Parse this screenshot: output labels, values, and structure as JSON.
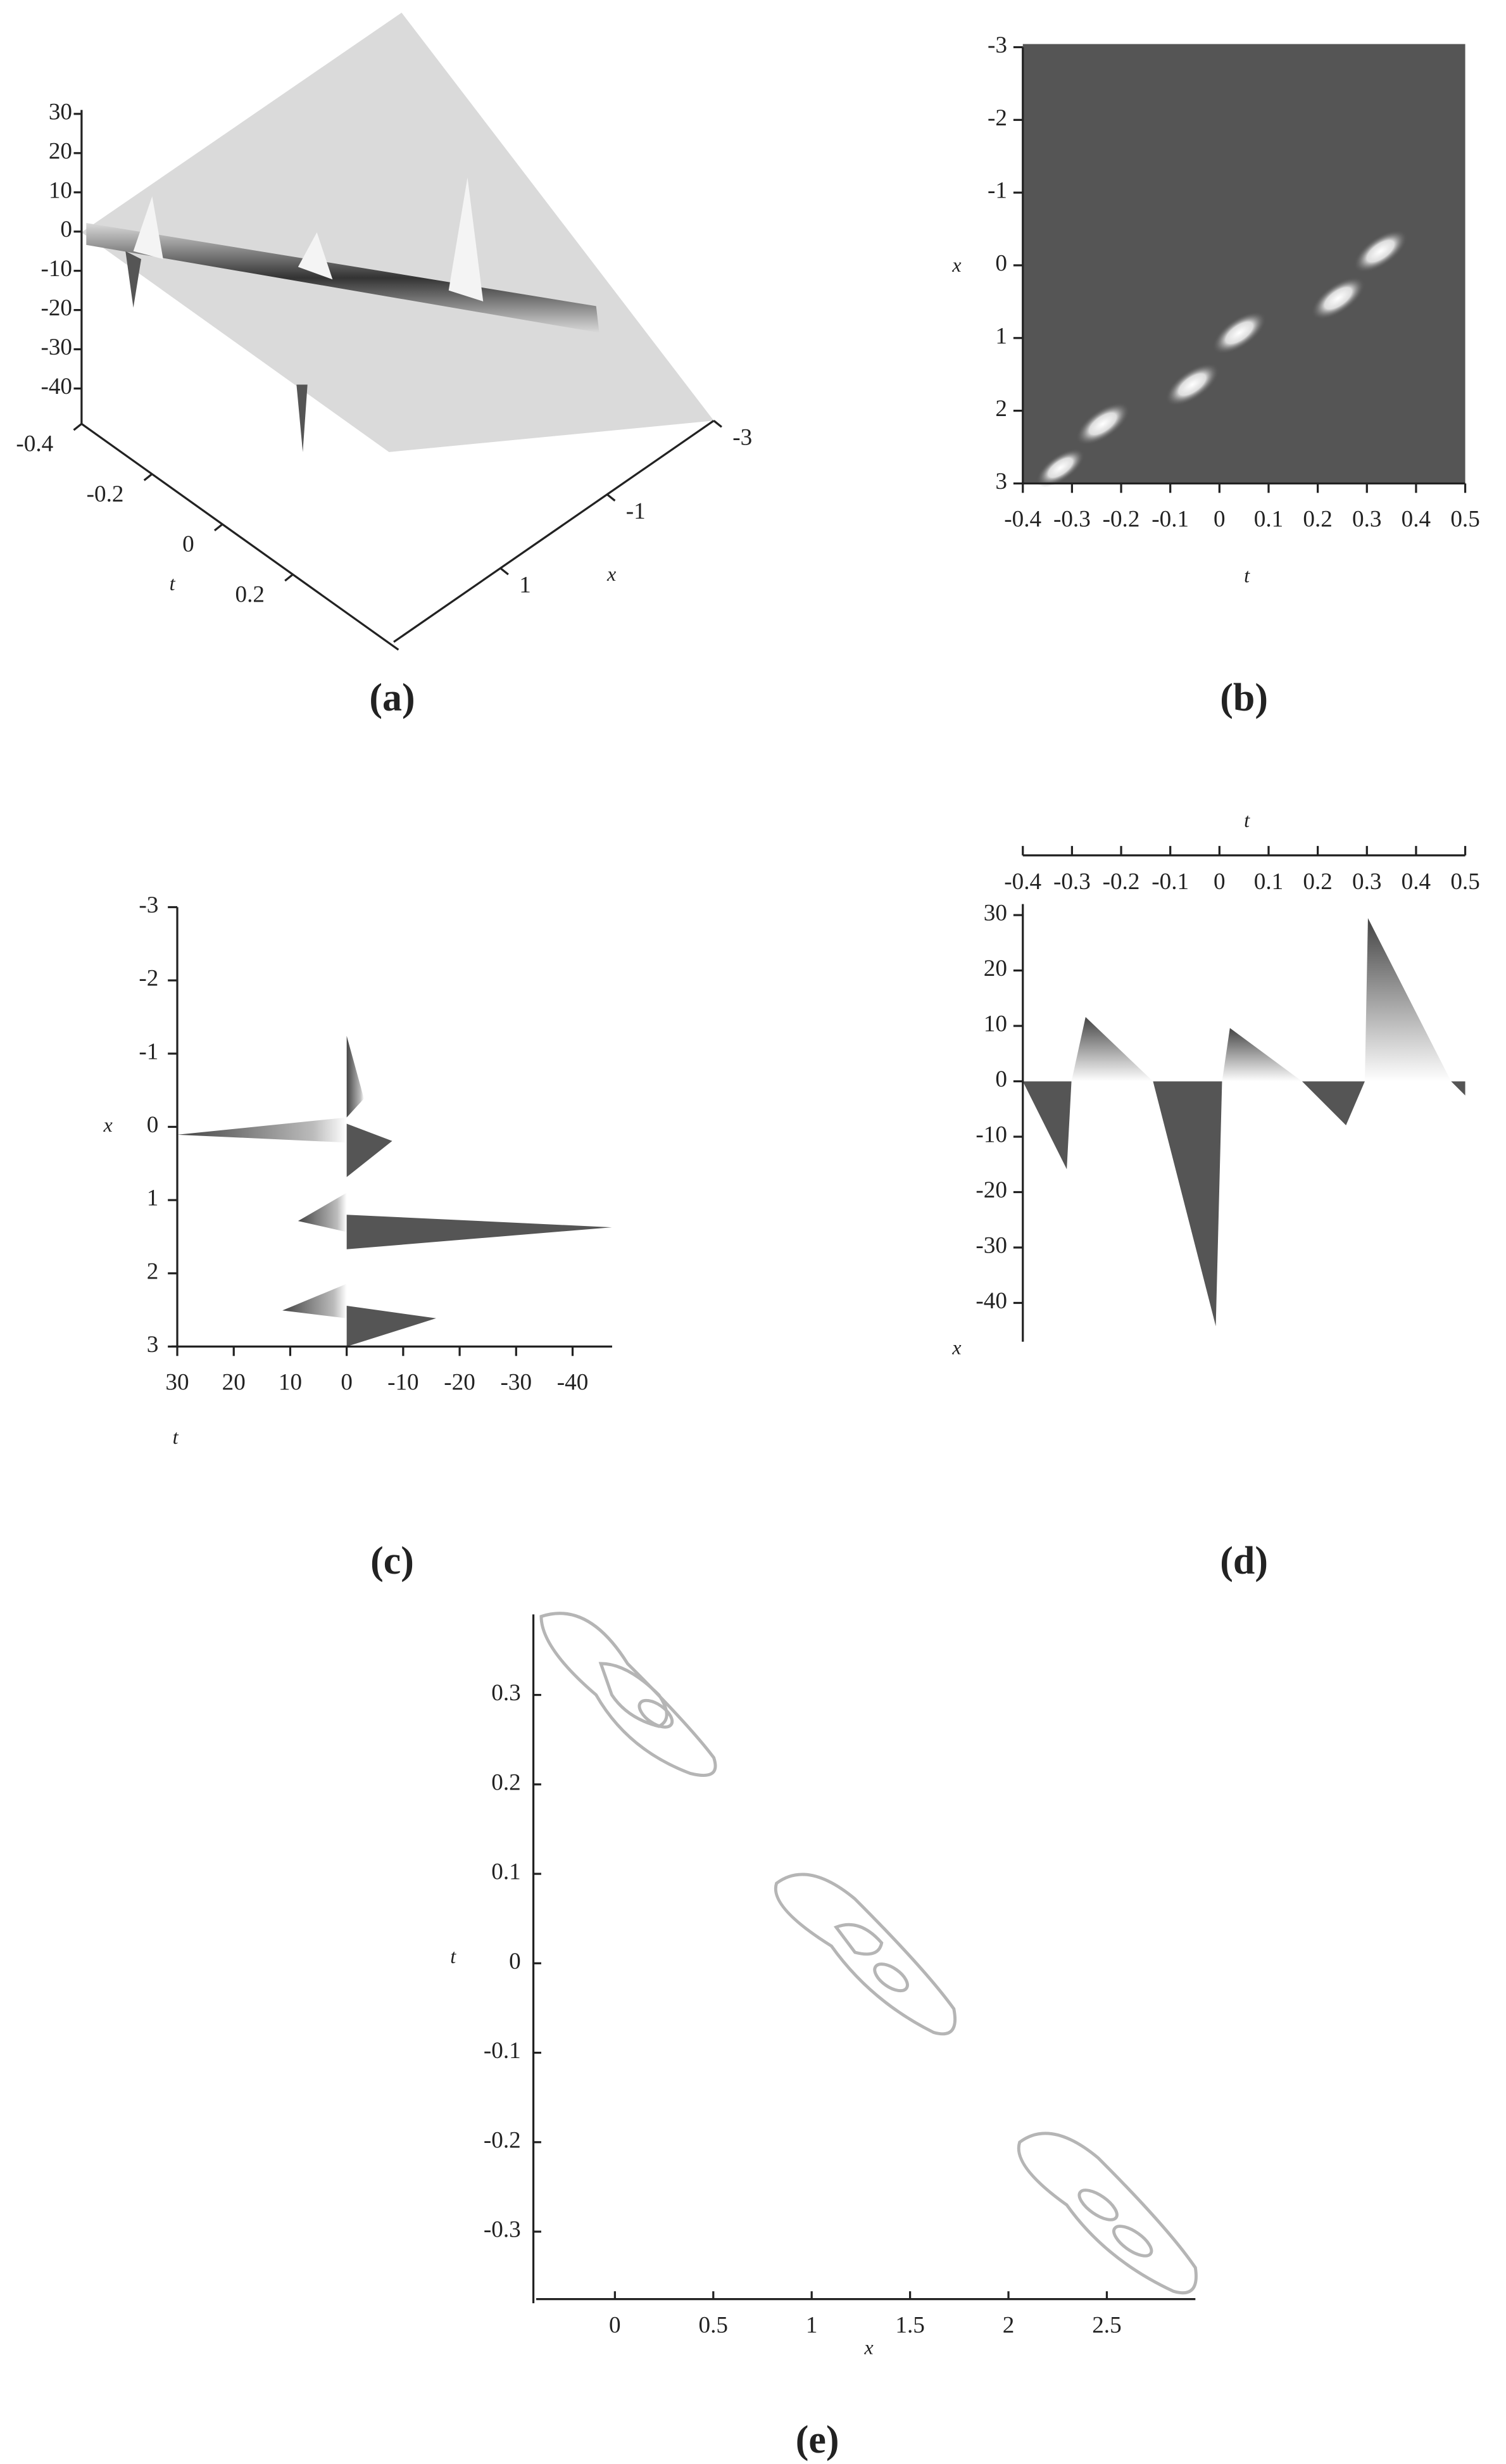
{
  "chart_data": [
    {
      "type": "surface3d",
      "panel_label": "(a)",
      "x_label": "x",
      "t_label": "t",
      "zlim": [
        -49,
        31
      ],
      "zticks": [
        30,
        20,
        10,
        0,
        -10,
        -20,
        -30,
        -40
      ],
      "tlim": [
        -0.4,
        0.5
      ],
      "tticks": [
        -0.4,
        -0.2,
        0,
        0.2
      ],
      "xlim": [
        3,
        -3
      ],
      "xticks": [
        1,
        -1,
        -3
      ]
    },
    {
      "type": "density",
      "panel_label": "(b)",
      "x_label": "x",
      "t_label": "t",
      "xlim": [
        -3,
        3
      ],
      "xticks": [
        -3,
        -2,
        -1,
        0,
        1,
        2,
        3
      ],
      "tlim": [
        -0.4,
        0.5
      ],
      "tticks": [
        -0.4,
        -0.3,
        -0.2,
        -0.1,
        0,
        0.1,
        0.2,
        0.3,
        0.4,
        0.5
      ]
    },
    {
      "type": "side_view",
      "panel_label": "(c)",
      "x_label": "x",
      "t_label": "t",
      "xlim": [
        -3,
        3
      ],
      "xticks": [
        -3,
        -2,
        -1,
        0,
        1,
        2,
        3
      ],
      "zlim": [
        31,
        -47
      ],
      "zticks": [
        30,
        20,
        10,
        0,
        -10,
        -20,
        -30,
        -40
      ]
    },
    {
      "type": "front_view",
      "panel_label": "(d)",
      "x_label": "x",
      "t_label": "t",
      "tlim": [
        -0.4,
        0.5
      ],
      "tticks": [
        -0.4,
        -0.3,
        -0.2,
        -0.1,
        0,
        0.1,
        0.2,
        0.3,
        0.4,
        0.5
      ],
      "zlim": [
        -47,
        32
      ],
      "zticks": [
        30,
        20,
        10,
        0,
        -10,
        -20,
        -30,
        -40
      ]
    },
    {
      "type": "contour",
      "panel_label": "(e)",
      "x_label": "x",
      "t_label": "t",
      "xlim": [
        -0.4,
        2.95
      ],
      "xticks": [
        0,
        0.5,
        1,
        1.5,
        2,
        2.5
      ],
      "tlim": [
        -0.38,
        0.39
      ],
      "tticks": [
        0.3,
        0.2,
        0.1,
        0,
        -0.1,
        -0.2,
        -0.3
      ]
    }
  ]
}
